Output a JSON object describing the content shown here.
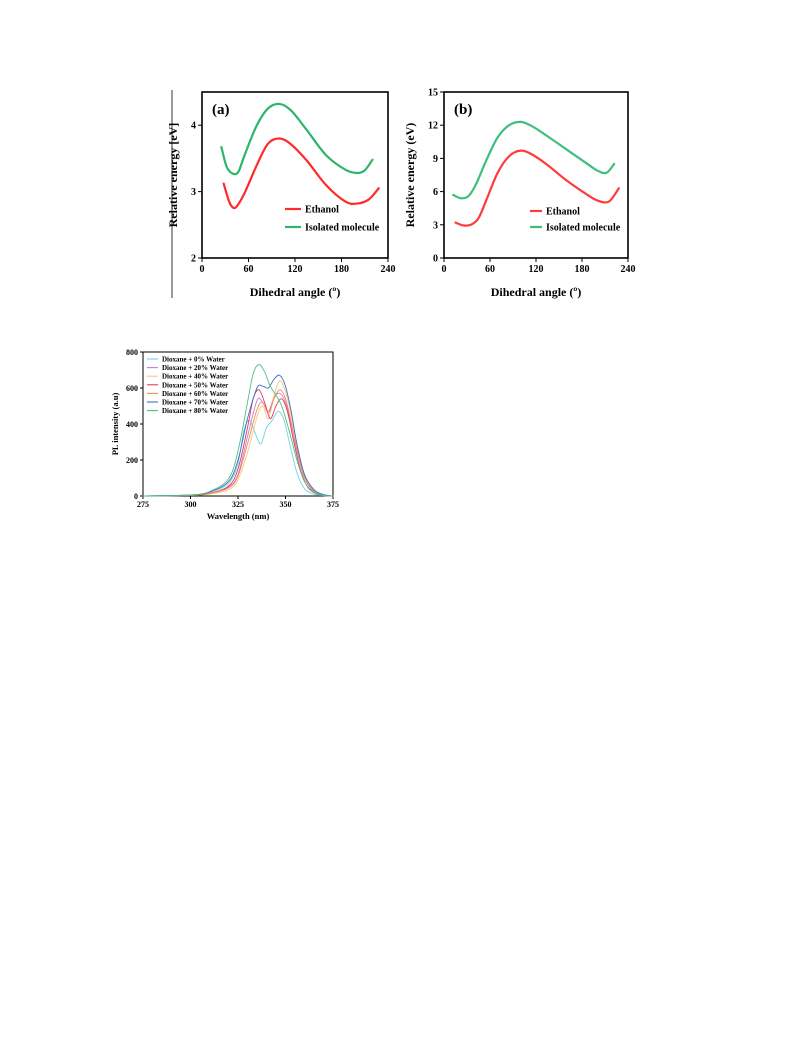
{
  "chart_data": [
    {
      "id": "a",
      "type": "line",
      "panel_label": "(a)",
      "xlabel": "Dihedral angle (º)",
      "ylabel": "Relative energy [eV]",
      "xlim": [
        0,
        240
      ],
      "ylim": [
        2,
        4.5
      ],
      "xticks": [
        0,
        60,
        120,
        180,
        240
      ],
      "yticks": [
        2,
        3,
        4
      ],
      "legend_position": "bottom-right",
      "series": [
        {
          "name": "Ethanol",
          "color": "#ff2a2a",
          "x": [
            28,
            35,
            40,
            45,
            55,
            70,
            85,
            100,
            115,
            135,
            160,
            185,
            200,
            215,
            228
          ],
          "y": [
            3.12,
            2.85,
            2.76,
            2.78,
            2.98,
            3.38,
            3.72,
            3.8,
            3.71,
            3.47,
            3.1,
            2.85,
            2.82,
            2.88,
            3.05
          ]
        },
        {
          "name": "Isolated molecule",
          "color": "#2db56b",
          "x": [
            25,
            32,
            40,
            47,
            55,
            70,
            85,
            100,
            115,
            135,
            160,
            185,
            200,
            210,
            220
          ],
          "y": [
            3.67,
            3.37,
            3.27,
            3.3,
            3.55,
            3.98,
            4.25,
            4.32,
            4.22,
            3.93,
            3.55,
            3.33,
            3.28,
            3.32,
            3.48
          ]
        }
      ]
    },
    {
      "id": "b",
      "type": "line",
      "panel_label": "(b)",
      "xlabel": "Dihedral angle (º)",
      "ylabel": "Relative energy (eV)",
      "xlim": [
        0,
        240
      ],
      "ylim": [
        0,
        15
      ],
      "xticks": [
        0,
        60,
        120,
        180,
        240
      ],
      "yticks": [
        0,
        3,
        6,
        9,
        12,
        15
      ],
      "legend_position": "bottom-right",
      "series": [
        {
          "name": "Ethanol",
          "color": "#ff3b3b",
          "x": [
            15,
            25,
            35,
            45,
            55,
            70,
            85,
            100,
            115,
            135,
            160,
            185,
            200,
            215,
            228
          ],
          "y": [
            3.2,
            2.95,
            3.0,
            3.6,
            5.2,
            7.7,
            9.2,
            9.7,
            9.35,
            8.4,
            7.0,
            5.8,
            5.2,
            5.1,
            6.3
          ]
        },
        {
          "name": "Isolated molecule",
          "color": "#3fbf7f",
          "x": [
            12,
            22,
            32,
            42,
            55,
            70,
            85,
            100,
            115,
            135,
            160,
            185,
            200,
            212,
            222
          ],
          "y": [
            5.7,
            5.4,
            5.6,
            6.7,
            8.8,
            10.9,
            12.0,
            12.3,
            11.9,
            11.0,
            9.8,
            8.6,
            7.9,
            7.7,
            8.5
          ]
        }
      ]
    },
    {
      "id": "c",
      "type": "line",
      "xlabel": "Wavelength (nm)",
      "ylabel": "PL intensity (a.u)",
      "xlim": [
        275,
        375
      ],
      "ylim": [
        0,
        800
      ],
      "xticks": [
        275,
        300,
        325,
        350,
        375
      ],
      "yticks": [
        0,
        200,
        400,
        600,
        800
      ],
      "legend_position": "top-left",
      "series": [
        {
          "name": "Dioxane + 0% Water",
          "color": "#6fd3e3",
          "x": [
            275,
            300,
            310,
            320,
            325,
            328,
            331,
            334,
            337,
            340,
            343,
            346,
            349,
            352,
            356,
            360,
            365,
            370,
            375
          ],
          "y": [
            0,
            5,
            20,
            70,
            180,
            360,
            420,
            350,
            290,
            380,
            420,
            470,
            430,
            300,
            130,
            40,
            10,
            2,
            0
          ]
        },
        {
          "name": "Dioxane + 20% Water",
          "color": "#c67adb",
          "x": [
            275,
            300,
            310,
            320,
            325,
            330,
            335,
            338,
            341,
            344,
            347,
            350,
            353,
            356,
            360,
            365,
            370,
            375
          ],
          "y": [
            0,
            5,
            15,
            50,
            120,
            330,
            530,
            520,
            470,
            550,
            570,
            520,
            400,
            250,
            100,
            25,
            5,
            0
          ]
        },
        {
          "name": "Dioxane + 40% Water",
          "color": "#f2c87a",
          "x": [
            275,
            300,
            310,
            320,
            325,
            330,
            335,
            338,
            341,
            344,
            347,
            350,
            353,
            356,
            360,
            365,
            370,
            375
          ],
          "y": [
            0,
            3,
            10,
            35,
            90,
            240,
            440,
            500,
            430,
            560,
            640,
            580,
            450,
            280,
            110,
            30,
            5,
            0
          ]
        },
        {
          "name": "Dioxane + 50% Water",
          "color": "#e23a55",
          "x": [
            275,
            300,
            310,
            320,
            325,
            330,
            333,
            336,
            339,
            342,
            345,
            348,
            351,
            354,
            358,
            362,
            367,
            372,
            375
          ],
          "y": [
            0,
            4,
            15,
            55,
            150,
            380,
            540,
            590,
            520,
            430,
            500,
            540,
            470,
            320,
            140,
            45,
            10,
            2,
            0
          ]
        },
        {
          "name": "Dioxane + 60% Water",
          "color": "#f08a5d",
          "x": [
            275,
            300,
            310,
            320,
            325,
            330,
            335,
            338,
            341,
            344,
            347,
            350,
            353,
            356,
            360,
            365,
            370,
            375
          ],
          "y": [
            0,
            4,
            14,
            45,
            110,
            290,
            480,
            520,
            460,
            540,
            590,
            540,
            410,
            260,
            105,
            28,
            5,
            0
          ]
        },
        {
          "name": "Dioxane + 70% Water",
          "color": "#3a6fc7",
          "x": [
            275,
            300,
            310,
            320,
            325,
            330,
            335,
            338,
            341,
            344,
            347,
            350,
            353,
            356,
            360,
            365,
            370,
            375
          ],
          "y": [
            0,
            6,
            22,
            80,
            200,
            430,
            600,
            610,
            600,
            650,
            670,
            610,
            470,
            290,
            120,
            35,
            8,
            0
          ]
        },
        {
          "name": "Dioxane + 80% Water",
          "color": "#4ec07e",
          "x": [
            275,
            300,
            310,
            320,
            325,
            330,
            333,
            336,
            339,
            342,
            345,
            348,
            352,
            356,
            360,
            365,
            370,
            375
          ],
          "y": [
            0,
            6,
            25,
            95,
            250,
            520,
            680,
            730,
            690,
            610,
            560,
            500,
            360,
            200,
            80,
            20,
            4,
            0
          ]
        }
      ]
    }
  ]
}
